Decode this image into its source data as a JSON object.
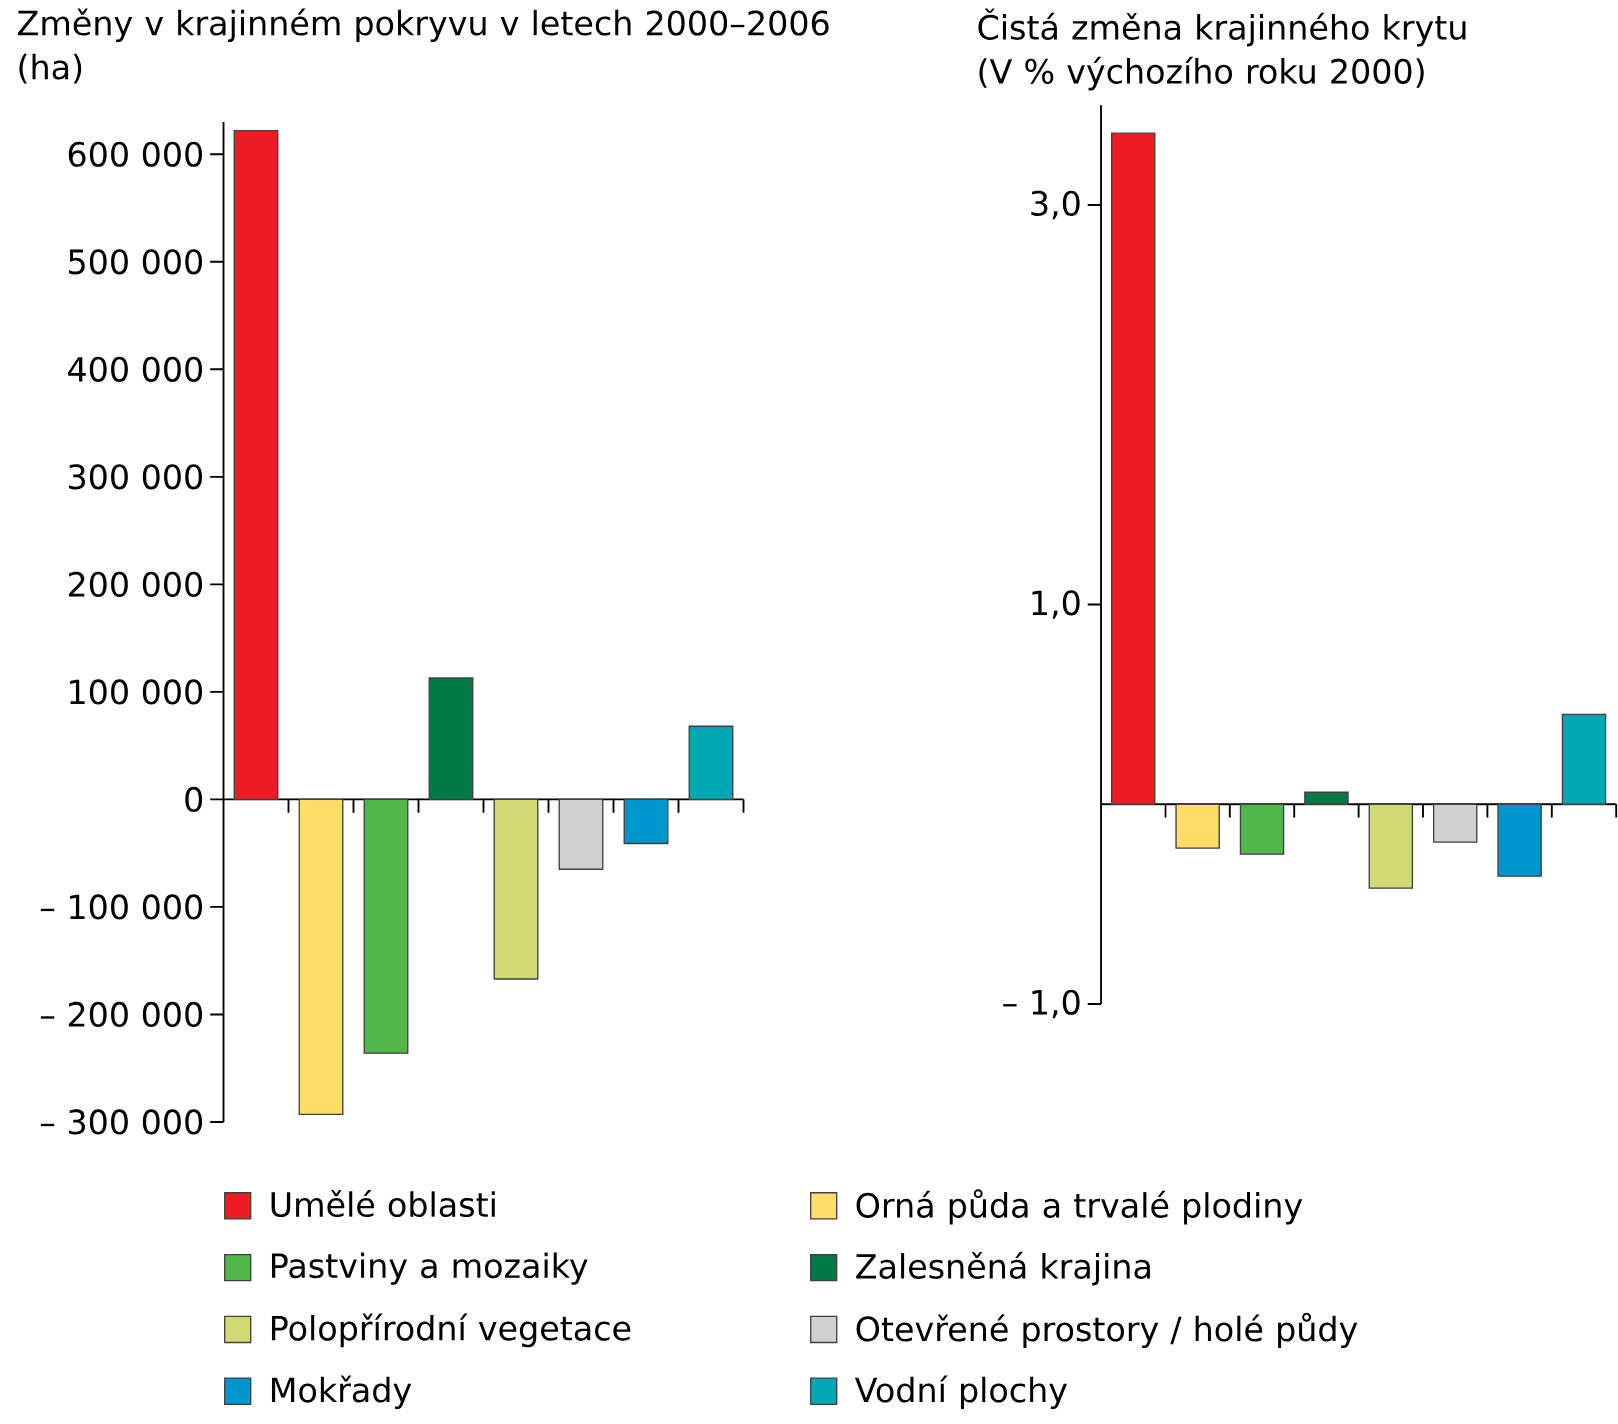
{
  "chart_data": [
    {
      "type": "bar",
      "title": "Změny v krajinném pokryvu v letech 2000–2006 (ha)",
      "categories": [
        null,
        null,
        null,
        null,
        null,
        null,
        null,
        null
      ],
      "series": [
        {
          "name": "Umělé oblasti",
          "color": "#ed1c24",
          "values": [
            622000,
            null,
            null,
            null,
            null,
            null,
            null,
            null
          ]
        },
        {
          "name": "Orná půda a trvalé plodiny",
          "color": "#ffdd66",
          "values": [
            null,
            -293000,
            null,
            null,
            null,
            null,
            null,
            null
          ]
        },
        {
          "name": "Pastviny a mozaiky",
          "color": "#50b848",
          "values": [
            null,
            null,
            -236000,
            null,
            null,
            null,
            null,
            null
          ]
        },
        {
          "name": "Zalesněná krajina",
          "color": "#007a45",
          "values": [
            null,
            null,
            null,
            113000,
            null,
            null,
            null,
            null
          ]
        },
        {
          "name": "Polopřírodní vegetace",
          "color": "#d2d873",
          "values": [
            null,
            null,
            null,
            null,
            -167000,
            null,
            null,
            null
          ]
        },
        {
          "name": "Otevřené prostory / holé půdy",
          "color": "#d0d0d0",
          "values": [
            null,
            null,
            null,
            null,
            null,
            -65000,
            null,
            null
          ]
        },
        {
          "name": "Mokřady",
          "color": "#0095cf",
          "values": [
            null,
            null,
            null,
            null,
            null,
            null,
            -41000,
            null
          ]
        },
        {
          "name": "Vodní plochy",
          "color": "#00a8b3",
          "values": [
            null,
            null,
            null,
            null,
            null,
            null,
            null,
            68000
          ]
        }
      ],
      "ylim": [
        -300000,
        630000
      ],
      "yticks": [
        {
          "value": -300000,
          "label": "– 300 000"
        },
        {
          "value": -200000,
          "label": "– 200 000"
        },
        {
          "value": -100000,
          "label": "– 100 000"
        },
        0,
        {
          "value": 100000,
          "label": "100 000"
        },
        {
          "value": 200000,
          "label": "200 000"
        },
        {
          "value": 300000,
          "label": "300 000"
        },
        {
          "value": 400000,
          "label": "400 000"
        },
        {
          "value": 500000,
          "label": "500 000"
        },
        {
          "value": 600000,
          "label": "600 000"
        }
      ],
      "legend": "bottom"
    },
    {
      "type": "bar",
      "title": "Čistá změna krajinného krytu (V % výchozího roku 2000)",
      "categories": [
        null,
        null,
        null,
        null,
        null,
        null,
        null,
        null
      ],
      "series": [
        {
          "color": "#ed1c24",
          "values": [
            3.36,
            null,
            null,
            null,
            null,
            null,
            null,
            null
          ]
        },
        {
          "color": "#ffdd66",
          "values": [
            null,
            -0.22,
            null,
            null,
            null,
            null,
            null,
            null
          ]
        },
        {
          "color": "#50b848",
          "values": [
            null,
            null,
            -0.25,
            null,
            null,
            null,
            null,
            null
          ]
        },
        {
          "color": "#007a45",
          "values": [
            null,
            null,
            null,
            0.06,
            null,
            null,
            null,
            null
          ]
        },
        {
          "color": "#d2d873",
          "values": [
            null,
            null,
            null,
            null,
            -0.42,
            null,
            null,
            null
          ]
        },
        {
          "color": "#d0d0d0",
          "values": [
            null,
            null,
            null,
            null,
            null,
            -0.19,
            null,
            null
          ]
        },
        {
          "color": "#0095cf",
          "values": [
            null,
            null,
            null,
            null,
            null,
            null,
            -0.36,
            null
          ]
        },
        {
          "color": "#00a8b3",
          "values": [
            null,
            null,
            null,
            null,
            null,
            null,
            null,
            0.45
          ]
        }
      ],
      "ylim": [
        -1.0,
        3.5
      ],
      "yticks": [
        {
          "value": -1.0,
          "label": "– 1,0"
        },
        {
          "value": 1.0,
          "label": "1,0"
        },
        {
          "value": 3.0,
          "label": "3,0"
        }
      ]
    }
  ]
}
